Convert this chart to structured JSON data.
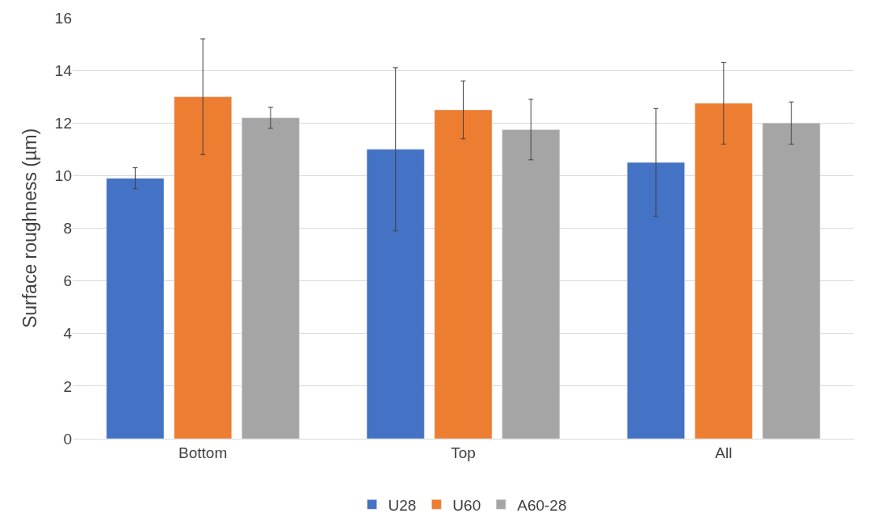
{
  "chart_data": {
    "type": "bar",
    "ylabel": "Surface roughness (µm)",
    "categories": [
      "Bottom",
      "Top",
      "All"
    ],
    "series": [
      {
        "name": "U28",
        "color": "#4472c4",
        "values": [
          9.9,
          11.0,
          10.5
        ],
        "errors": [
          0.4,
          3.1,
          2.05
        ]
      },
      {
        "name": "U60",
        "color": "#ed7d31",
        "values": [
          13.0,
          12.5,
          12.75
        ],
        "errors": [
          2.2,
          1.1,
          1.55
        ]
      },
      {
        "name": "A60-28",
        "color": "#a5a5a5",
        "values": [
          12.2,
          11.75,
          12.0
        ],
        "errors": [
          0.4,
          1.15,
          0.8
        ]
      }
    ],
    "ylim": [
      0,
      16
    ],
    "yticks": [
      0,
      2,
      4,
      6,
      8,
      10,
      12,
      14,
      16
    ],
    "grid": "y",
    "legend": "bottom"
  }
}
